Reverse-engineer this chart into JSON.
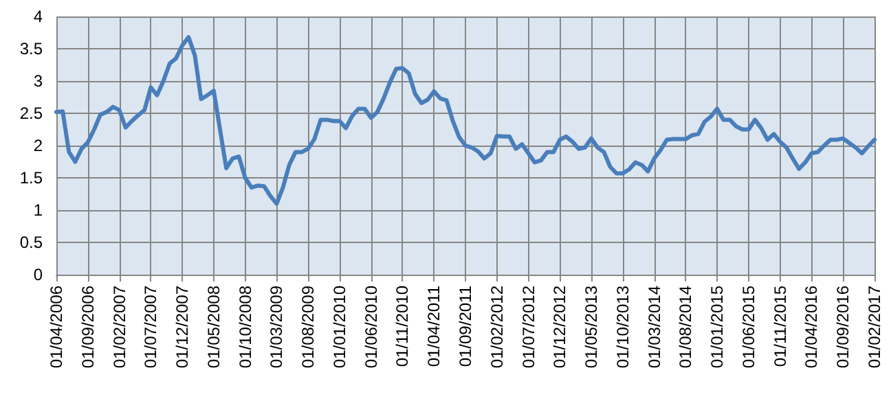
{
  "chart_data": {
    "type": "line",
    "categories": [
      "01/04/2006",
      null,
      null,
      null,
      null,
      "01/09/2006",
      null,
      null,
      null,
      null,
      "01/02/2007",
      null,
      null,
      null,
      null,
      "01/07/2007",
      null,
      null,
      null,
      null,
      "01/12/2007",
      null,
      null,
      null,
      null,
      "01/05/2008",
      null,
      null,
      null,
      null,
      "01/10/2008",
      null,
      null,
      null,
      null,
      "01/03/2009",
      null,
      null,
      null,
      null,
      "01/08/2009",
      null,
      null,
      null,
      null,
      "01/01/2010",
      null,
      null,
      null,
      null,
      "01/06/2010",
      null,
      null,
      null,
      null,
      "01/11/2010",
      null,
      null,
      null,
      null,
      "01/04/2011",
      null,
      null,
      null,
      null,
      "01/09/2011",
      null,
      null,
      null,
      null,
      "01/02/2012",
      null,
      null,
      null,
      null,
      "01/07/2012",
      null,
      null,
      null,
      null,
      "01/12/2012",
      null,
      null,
      null,
      null,
      "01/05/2013",
      null,
      null,
      null,
      null,
      "01/10/2013",
      null,
      null,
      null,
      null,
      "01/03/2014",
      null,
      null,
      null,
      null,
      "01/08/2014",
      null,
      null,
      null,
      null,
      "01/01/2015",
      null,
      null,
      null,
      null,
      "01/06/2015",
      null,
      null,
      null,
      null,
      "01/11/2015",
      null,
      null,
      null,
      null,
      "01/04/2016",
      null,
      null,
      null,
      null,
      "01/09/2016",
      null,
      null,
      null,
      null,
      "01/02/2017"
    ],
    "series": [
      {
        "color": "#4a7ebb",
        "values": [
          2.52,
          2.53,
          1.9,
          1.75,
          1.95,
          2.05,
          2.25,
          2.48,
          2.52,
          2.6,
          2.55,
          2.28,
          2.38,
          2.47,
          2.55,
          2.9,
          2.78,
          3.0,
          3.27,
          3.35,
          3.55,
          3.68,
          3.4,
          2.72,
          2.78,
          2.85,
          2.25,
          1.65,
          1.8,
          1.83,
          1.5,
          1.35,
          1.38,
          1.37,
          1.22,
          1.1,
          1.35,
          1.7,
          1.9,
          1.9,
          1.95,
          2.1,
          2.4,
          2.4,
          2.38,
          2.38,
          2.27,
          2.46,
          2.57,
          2.57,
          2.43,
          2.52,
          2.73,
          2.98,
          3.19,
          3.2,
          3.12,
          2.8,
          2.66,
          2.71,
          2.84,
          2.73,
          2.7,
          2.38,
          2.13,
          2.0,
          1.97,
          1.91,
          1.8,
          1.88,
          2.15,
          2.14,
          2.14,
          1.95,
          2.02,
          1.88,
          1.74,
          1.77,
          1.9,
          1.9,
          2.09,
          2.14,
          2.06,
          1.95,
          1.97,
          2.11,
          1.97,
          1.9,
          1.67,
          1.57,
          1.57,
          1.63,
          1.74,
          1.7,
          1.6,
          1.8,
          1.93,
          2.09,
          2.1,
          2.1,
          2.1,
          2.16,
          2.18,
          2.37,
          2.45,
          2.57,
          2.4,
          2.4,
          2.3,
          2.25,
          2.25,
          2.4,
          2.27,
          2.09,
          2.18,
          2.06,
          1.97,
          1.8,
          1.64,
          1.74,
          1.88,
          1.9,
          2.0,
          2.09,
          2.09,
          2.11,
          2.04,
          1.97,
          1.88,
          1.99,
          2.09
        ]
      }
    ],
    "ylim": [
      0,
      4
    ],
    "yticks": [
      0,
      0.5,
      1,
      1.5,
      2,
      2.5,
      3,
      3.5,
      4
    ],
    "grid": true,
    "marker": "none",
    "line_style": "solid"
  }
}
